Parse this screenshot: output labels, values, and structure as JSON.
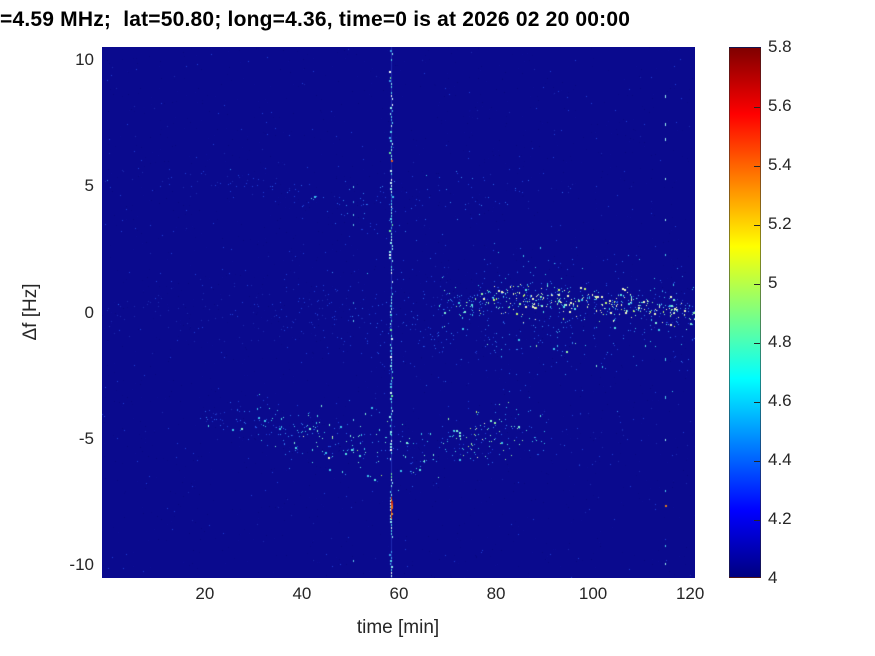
{
  "chart_data": {
    "type": "heatmap",
    "subtype": "doppler-spectrogram",
    "title": "=4.59 MHz;  lat=50.80; long=4.36, time=0 is at 2026 02 20 00:00",
    "xlabel": "time [min]",
    "ylabel": "Δf [Hz]",
    "x_ticks": [
      20,
      40,
      60,
      80,
      100,
      120
    ],
    "y_ticks": [
      10,
      5,
      0,
      -5,
      -10
    ],
    "x_range": [
      -1.2,
      121
    ],
    "y_range": [
      -10.5,
      10.5
    ],
    "grid": false,
    "legend": false,
    "colormap": "jet",
    "background_value": 4,
    "background_color": "#0a0a8e",
    "colorbar": {
      "position": "right",
      "range": [
        4,
        5.8
      ],
      "ticks": [
        4,
        4.2,
        4.4,
        4.6,
        4.8,
        5,
        5.2,
        5.4,
        5.6,
        5.8
      ]
    },
    "features": {
      "path_fields": [
        "t_min",
        "f_center_hz",
        "f_spread_hz",
        "density",
        "heat"
      ],
      "background_mottle": {
        "count": 2400
      },
      "noise_speckles": {
        "count": 380,
        "heat": 0.07
      },
      "bands": [
        {
          "name": "doppler-band-center-diffuse",
          "count": 1050,
          "path": [
            [
              -1,
              0.0,
              0.45,
              0.18,
              0.06
            ],
            [
              20,
              0.0,
              0.5,
              0.22,
              0.07
            ],
            [
              38,
              -0.1,
              0.8,
              0.45,
              0.12
            ],
            [
              52,
              -0.15,
              1.1,
              0.6,
              0.16
            ],
            [
              66,
              -0.2,
              1.3,
              0.75,
              0.2
            ],
            [
              80,
              -0.15,
              1.4,
              0.95,
              0.28
            ],
            [
              95,
              -0.1,
              1.3,
              0.95,
              0.3
            ],
            [
              110,
              -0.15,
              1.2,
              0.9,
              0.3
            ],
            [
              121,
              -0.2,
              1.0,
              0.9,
              0.32
            ]
          ]
        },
        {
          "name": "doppler-band-center-bright-ridge",
          "count": 470,
          "path": [
            [
              68,
              0.3,
              0.4,
              0.5,
              0.42
            ],
            [
              78,
              0.55,
              0.35,
              0.9,
              0.6
            ],
            [
              88,
              0.55,
              0.32,
              1.0,
              0.72
            ],
            [
              98,
              0.45,
              0.3,
              1.0,
              0.72
            ],
            [
              108,
              0.3,
              0.28,
              1.0,
              0.7
            ],
            [
              115,
              0.15,
              0.26,
              1.0,
              0.72
            ],
            [
              121,
              0.02,
              0.26,
              1.0,
              0.75
            ]
          ]
        },
        {
          "name": "doppler-band-plus5hz",
          "count": 420,
          "path": [
            [
              -1,
              5.3,
              0.28,
              0.3,
              0.1
            ],
            [
              15,
              5.25,
              0.3,
              0.3,
              0.1
            ],
            [
              30,
              5.1,
              0.35,
              0.38,
              0.13
            ],
            [
              42,
              4.6,
              0.5,
              0.5,
              0.2
            ],
            [
              52,
              4.25,
              0.55,
              0.6,
              0.28
            ],
            [
              62,
              4.2,
              0.5,
              0.6,
              0.3
            ],
            [
              72,
              4.5,
              0.5,
              0.5,
              0.25
            ],
            [
              82,
              4.85,
              0.45,
              0.4,
              0.2
            ],
            [
              92,
              5.1,
              0.4,
              0.3,
              0.15
            ],
            [
              100,
              5.2,
              0.35,
              0.2,
              0.12
            ],
            [
              108,
              5.3,
              0.3,
              0.1,
              0.1
            ]
          ]
        },
        {
          "name": "doppler-band-minus5hz",
          "count": 880,
          "path": [
            [
              19,
              -4.2,
              0.25,
              0.35,
              0.2
            ],
            [
              27,
              -4.35,
              0.45,
              0.55,
              0.3
            ],
            [
              36,
              -4.7,
              0.55,
              0.7,
              0.38
            ],
            [
              46,
              -5.0,
              0.6,
              0.75,
              0.45
            ],
            [
              56,
              -5.4,
              0.6,
              0.7,
              0.42
            ],
            [
              66,
              -5.5,
              0.65,
              0.65,
              0.4
            ],
            [
              76,
              -5.0,
              0.55,
              0.85,
              0.55
            ],
            [
              84,
              -4.6,
              0.5,
              0.8,
              0.5
            ],
            [
              90,
              -4.7,
              0.5,
              0.45,
              0.28
            ],
            [
              96,
              -5.0,
              0.7,
              0.2,
              0.12
            ],
            [
              110,
              -5.0,
              0.9,
              0.1,
              0.08
            ],
            [
              121,
              -5.0,
              0.9,
              0.1,
              0.08
            ]
          ]
        }
      ],
      "vlines": [
        {
          "name": "rfi-line-58min",
          "t": 58.3,
          "kind": "dashed-bright",
          "hot_segments": [
            {
              "f0": -7.3,
              "f1": -8.15
            }
          ],
          "hot_dots": [
            6.05
          ]
        },
        {
          "name": "rfi-line-115min",
          "t": 114.8,
          "kind": "dotted",
          "dots": [
            8.6,
            7.5,
            6.9,
            5.3,
            3.7,
            2.3,
            -1.8,
            -3.3,
            -5.0,
            -7.0,
            -9.2,
            -9.9
          ],
          "orange_dots": [
            -7.6
          ]
        },
        {
          "name": "rfi-streak-51min",
          "t": 50.6,
          "kind": "dotted-dim",
          "dots": [
            5.0,
            4.4,
            3.9,
            3.5,
            0.4,
            -0.3,
            -4.2,
            -5.4,
            -9.8
          ]
        }
      ]
    }
  }
}
